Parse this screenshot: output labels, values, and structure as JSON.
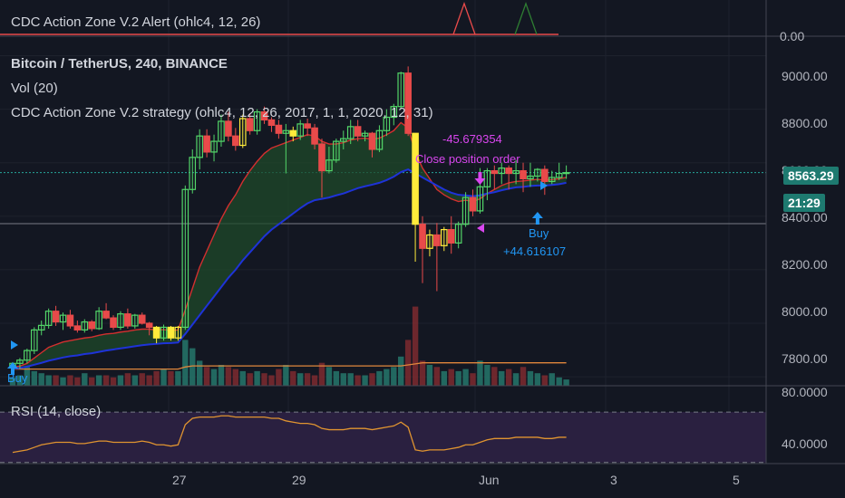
{
  "colors": {
    "background": "#131722",
    "up_candle": "#53d769",
    "down_candle": "#e84a4a",
    "signal_candle": "#ffeb3b",
    "ema_fast": "#d32f2f",
    "ema_slow": "#1e33d8",
    "cloud_fill": "#1f4a2a",
    "vol_up": "#26776b",
    "vol_down": "#7e2a2f",
    "vol_ma": "#e0873c",
    "rsi_line": "#e09430",
    "rsi_band": "#2a2040",
    "buy_marker": "#2196f3",
    "sell_marker": "#d946ef",
    "price_line": "#26a69a",
    "price_badge": "#1e7a70"
  },
  "alert_pane": {
    "title": "CDC Action Zone V.2 Alert (ohlc4, 12, 26)",
    "axis_label": "0.00"
  },
  "main_pane": {
    "symbol": "Bitcoin / TetherUS, 240, BINANCE",
    "volume_label": "Vol (20)",
    "strategy_label": "CDC Action Zone V.2 strategy (ohlc4, 12, 26, 2017, 1, 1, 2020, 12, 31)",
    "price_axis": [
      "9000.00",
      "8800.00",
      "8600.00",
      "8400.00",
      "8200.00",
      "8000.00",
      "7800.00"
    ],
    "last_price": "8563.29",
    "countdown": "21:29",
    "close_pnl": "-45.679354",
    "close_label": "Close position order",
    "buy_label": "Buy",
    "buy_amount": "+44.616107",
    "buy_label_left": "Buy"
  },
  "rsi_pane": {
    "title": "RSI (14, close)",
    "axis_top": "80.0000",
    "axis_bottom": "40.0000"
  },
  "time_axis": [
    "27",
    "29",
    "Jun",
    "3",
    "5"
  ],
  "chart_data": {
    "type": "candlestick",
    "title": "Bitcoin / TetherUS, 240, BINANCE",
    "interval": "240",
    "ylim": [
      7780,
      9100
    ],
    "x_ticks": [
      "27",
      "29",
      "Jun",
      "3",
      "5"
    ],
    "candles": [
      [
        7835,
        7855,
        7820,
        7850
      ],
      [
        7850,
        7870,
        7830,
        7862
      ],
      [
        7862,
        7905,
        7850,
        7898
      ],
      [
        7898,
        7985,
        7885,
        7975
      ],
      [
        7975,
        8010,
        7955,
        7992
      ],
      [
        7992,
        8055,
        7980,
        8045
      ],
      [
        8045,
        8065,
        7990,
        8005
      ],
      [
        8005,
        8040,
        7975,
        8030
      ],
      [
        8030,
        8050,
        7980,
        7990
      ],
      [
        7990,
        8010,
        7965,
        7975
      ],
      [
        7975,
        8015,
        7965,
        8005
      ],
      [
        8005,
        8012,
        7970,
        7980
      ],
      [
        7980,
        8060,
        7975,
        8045
      ],
      [
        8045,
        8075,
        8015,
        8020
      ],
      [
        8020,
        8030,
        7975,
        7985
      ],
      [
        7985,
        8045,
        7975,
        8035
      ],
      [
        8035,
        8055,
        7980,
        7990
      ],
      [
        7990,
        8035,
        7980,
        8030
      ],
      [
        8030,
        8040,
        7995,
        8000
      ],
      [
        8000,
        8005,
        7955,
        7985
      ],
      [
        7985,
        7990,
        7925,
        7945
      ],
      [
        7945,
        7995,
        7935,
        7985
      ],
      [
        7985,
        7990,
        7935,
        7945
      ],
      [
        7945,
        7990,
        7935,
        7985
      ],
      [
        7985,
        8515,
        7975,
        8500
      ],
      [
        8500,
        8650,
        8485,
        8620
      ],
      [
        8620,
        8725,
        8575,
        8700
      ],
      [
        8700,
        8725,
        8620,
        8640
      ],
      [
        8640,
        8705,
        8605,
        8680
      ],
      [
        8680,
        8780,
        8660,
        8755
      ],
      [
        8755,
        8790,
        8680,
        8700
      ],
      [
        8700,
        8730,
        8645,
        8665
      ],
      [
        8665,
        8780,
        8655,
        8765
      ],
      [
        8765,
        8785,
        8705,
        8720
      ],
      [
        8720,
        8800,
        8705,
        8790
      ],
      [
        8790,
        8810,
        8745,
        8760
      ],
      [
        8760,
        8770,
        8715,
        8740
      ],
      [
        8740,
        8760,
        8690,
        8710
      ],
      [
        8710,
        8745,
        8560,
        8720
      ],
      [
        8720,
        8735,
        8680,
        8700
      ],
      [
        8700,
        8760,
        8685,
        8745
      ],
      [
        8745,
        8765,
        8700,
        8730
      ],
      [
        8730,
        8745,
        8650,
        8670
      ],
      [
        8670,
        8690,
        8470,
        8570
      ],
      [
        8570,
        8660,
        8560,
        8610
      ],
      [
        8610,
        8690,
        8600,
        8680
      ],
      [
        8680,
        8720,
        8650,
        8690
      ],
      [
        8690,
        8760,
        8670,
        8735
      ],
      [
        8735,
        8760,
        8680,
        8700
      ],
      [
        8700,
        8720,
        8680,
        8710
      ],
      [
        8710,
        8715,
        8620,
        8650
      ],
      [
        8650,
        8740,
        8640,
        8720
      ],
      [
        8720,
        8800,
        8700,
        8770
      ],
      [
        8770,
        8820,
        8740,
        8810
      ],
      [
        8810,
        8940,
        8800,
        8935
      ],
      [
        8935,
        8960,
        8700,
        8710
      ],
      [
        8710,
        8700,
        8230,
        8370
      ],
      [
        8370,
        8400,
        8150,
        8280
      ],
      [
        8280,
        8350,
        8250,
        8330
      ],
      [
        8330,
        8375,
        8120,
        8290
      ],
      [
        8290,
        8360,
        8270,
        8350
      ],
      [
        8350,
        8400,
        8260,
        8300
      ],
      [
        8300,
        8380,
        8280,
        8370
      ],
      [
        8370,
        8490,
        8360,
        8470
      ],
      [
        8470,
        8500,
        8400,
        8420
      ],
      [
        8420,
        8580,
        8410,
        8510
      ],
      [
        8510,
        8580,
        8460,
        8570
      ],
      [
        8570,
        8590,
        8500,
        8560
      ],
      [
        8560,
        8600,
        8520,
        8580
      ],
      [
        8580,
        8590,
        8500,
        8560
      ],
      [
        8560,
        8610,
        8520,
        8570
      ],
      [
        8570,
        8600,
        8490,
        8540
      ],
      [
        8540,
        8600,
        8510,
        8550
      ],
      [
        8550,
        8580,
        8530,
        8575
      ],
      [
        8575,
        8590,
        8480,
        8530
      ],
      [
        8530,
        8570,
        8520,
        8545
      ],
      [
        8545,
        8600,
        8535,
        8560
      ],
      [
        8560,
        8590,
        8540,
        8563
      ]
    ],
    "signal_candles": [
      20,
      22,
      23,
      32,
      39,
      56,
      58,
      60
    ],
    "ema_fast": [
      7835,
      7840,
      7850,
      7870,
      7890,
      7910,
      7920,
      7930,
      7935,
      7940,
      7945,
      7948,
      7955,
      7960,
      7962,
      7967,
      7970,
      7975,
      7978,
      7978,
      7975,
      7976,
      7973,
      7975,
      8050,
      8130,
      8210,
      8270,
      8330,
      8390,
      8440,
      8480,
      8530,
      8570,
      8605,
      8635,
      8655,
      8665,
      8675,
      8685,
      8695,
      8705,
      8700,
      8680,
      8670,
      8670,
      8675,
      8685,
      8690,
      8692,
      8688,
      8692,
      8705,
      8720,
      8750,
      8730,
      8640,
      8580,
      8540,
      8500,
      8480,
      8465,
      8455,
      8460,
      8455,
      8465,
      8485,
      8500,
      8515,
      8525,
      8530,
      8532,
      8535,
      8538,
      8535,
      8537,
      8540,
      8545
    ],
    "ema_slow": [
      7830,
      7833,
      7838,
      7845,
      7852,
      7860,
      7866,
      7872,
      7877,
      7880,
      7885,
      7888,
      7893,
      7898,
      7902,
      7906,
      7910,
      7914,
      7918,
      7921,
      7923,
      7925,
      7926,
      7928,
      7960,
      7995,
      8030,
      8065,
      8100,
      8135,
      8170,
      8200,
      8235,
      8265,
      8295,
      8325,
      8350,
      8370,
      8390,
      8410,
      8430,
      8448,
      8460,
      8465,
      8470,
      8478,
      8485,
      8495,
      8505,
      8512,
      8518,
      8525,
      8535,
      8548,
      8565,
      8575,
      8560,
      8545,
      8530,
      8515,
      8500,
      8488,
      8480,
      8478,
      8475,
      8478,
      8485,
      8490,
      8497,
      8503,
      8508,
      8510,
      8513,
      8515,
      8515,
      8517,
      8520,
      8525
    ],
    "volume": [
      4,
      5,
      9,
      7,
      6,
      5,
      5,
      4,
      5,
      4,
      6,
      4,
      5,
      5,
      4,
      5,
      6,
      5,
      6,
      5,
      7,
      8,
      7,
      7,
      22,
      18,
      12,
      9,
      8,
      10,
      9,
      8,
      7,
      6,
      7,
      6,
      5,
      8,
      10,
      7,
      6,
      6,
      5,
      11,
      9,
      7,
      6,
      6,
      5,
      5,
      6,
      7,
      8,
      9,
      14,
      22,
      38,
      12,
      10,
      9,
      7,
      8,
      7,
      8,
      6,
      12,
      10,
      9,
      7,
      8,
      6,
      9,
      7,
      6,
      5,
      6,
      4,
      3
    ],
    "volume_ma": [
      8,
      8,
      8,
      8,
      8,
      8,
      8,
      8,
      8,
      8,
      8,
      8,
      8,
      8,
      8,
      8,
      8,
      8,
      8,
      8,
      8,
      8,
      8,
      8,
      9,
      9.5,
      9.5,
      9.5,
      9.5,
      9.5,
      9.5,
      9.5,
      9.5,
      9.5,
      9.5,
      9.5,
      9.5,
      9.5,
      9.5,
      9.5,
      9.5,
      9.5,
      9.5,
      9.5,
      9.5,
      9.5,
      9.5,
      9.5,
      9.5,
      9.5,
      9.5,
      9.5,
      9.5,
      9.5,
      9.5,
      10,
      10.5,
      11,
      11,
      11,
      11,
      11,
      11,
      11,
      11,
      11,
      11,
      11,
      11,
      11,
      11,
      11,
      11,
      11,
      11,
      11,
      11,
      11
    ],
    "rsi": [
      38,
      39,
      40,
      42,
      44,
      45,
      46,
      46,
      46,
      45,
      45,
      46,
      47,
      47,
      46,
      46,
      46,
      46,
      47,
      46,
      44,
      44,
      43,
      44,
      60,
      65,
      66,
      66,
      66,
      67,
      67,
      66,
      66,
      66,
      66,
      66,
      65,
      65,
      63,
      62,
      61,
      61,
      60,
      57,
      56,
      56,
      56,
      57,
      57,
      57,
      56,
      57,
      58,
      59,
      62,
      58,
      40,
      39,
      40,
      40,
      40,
      41,
      42,
      44,
      44,
      46,
      48,
      49,
      49,
      49,
      50,
      50,
      50,
      50,
      49,
      49,
      50,
      50
    ],
    "rsi_ylim": [
      32,
      88
    ],
    "rsi_levels": [
      70,
      30
    ],
    "trades": [
      {
        "type": "buy",
        "index": 0,
        "label": "Buy"
      },
      {
        "type": "close",
        "index": 65,
        "label": "Close position order",
        "pnl": "-45.679354"
      },
      {
        "type": "buy",
        "index": 73,
        "label": "Buy",
        "pnl": "+44.616107"
      }
    ]
  }
}
